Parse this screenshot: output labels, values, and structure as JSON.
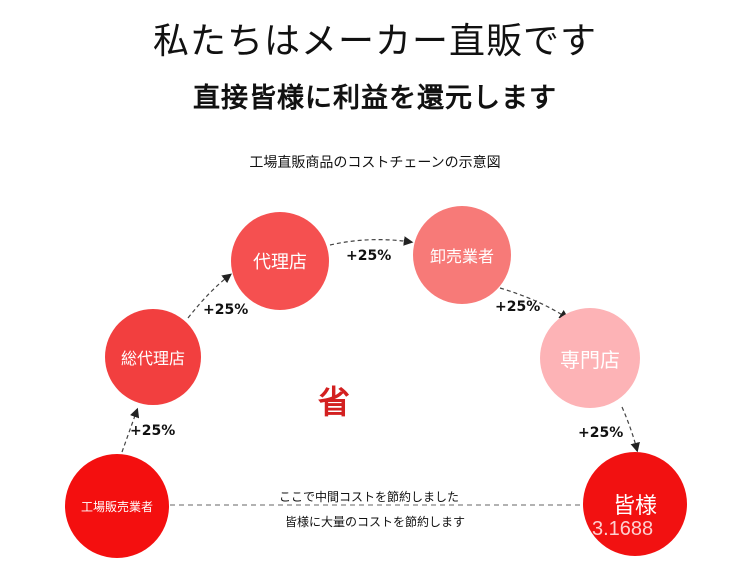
{
  "header": {
    "title": "私たちはメーカー直販です",
    "subtitle": "直接皆様に利益を還元します",
    "caption": "工場直販商品のコストチェーンの示意図"
  },
  "nodes": {
    "factory": "工場販売業者",
    "general_agent": "総代理店",
    "agent": "代理店",
    "wholesaler": "卸売業者",
    "specialty_store": "専門店",
    "customer": "皆様"
  },
  "markups": {
    "m1": "+25%",
    "m2": "+25%",
    "m3": "+25%",
    "m4": "+25%",
    "m5": "+25%"
  },
  "center_mark": "省",
  "savings": {
    "line1": "ここで中間コストを節約しました",
    "line2": "皆様に大量のコストを節約します"
  },
  "watermark": "3.1688",
  "colors": {
    "factory": "#f40f0f",
    "general_agent": "#f23f3f",
    "agent": "#f55050",
    "wholesaler": "#f77a78",
    "specialty_store": "#fdb3b6",
    "customer": "#f21111",
    "save_mark": "#d32020"
  }
}
